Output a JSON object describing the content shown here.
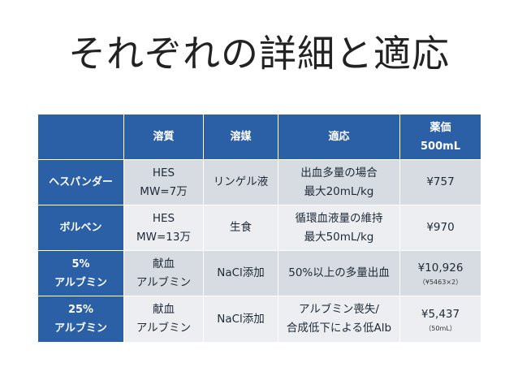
{
  "title": "それぞれの詳細と適応",
  "table": {
    "headers": [
      "",
      "溶質",
      "溶媒",
      "適応",
      [
        "薬価",
        "500mL"
      ]
    ],
    "rows": [
      {
        "name": [
          "ヘスパンダー"
        ],
        "solute": [
          "HES",
          "MW=7万"
        ],
        "solvent": [
          "リンゲル液"
        ],
        "indication": [
          "出血多量の場合",
          "最大20mL/kg"
        ],
        "price": "¥757",
        "price_note": ""
      },
      {
        "name": [
          "ボルベン"
        ],
        "solute": [
          "HES",
          "MW=13万"
        ],
        "solvent": [
          "生食"
        ],
        "indication": [
          "循環血液量の維持",
          "最大50mL/kg"
        ],
        "price": "¥970",
        "price_note": ""
      },
      {
        "name": [
          "5%",
          "アルブミン"
        ],
        "solute": [
          "献血",
          "アルブミン"
        ],
        "solvent": [
          "NaCl添加"
        ],
        "indication": [
          "50%以上の多量出血"
        ],
        "price": "¥10,926",
        "price_note": "（¥5463×2）"
      },
      {
        "name": [
          "25%",
          "アルブミン"
        ],
        "solute": [
          "献血",
          "アルブミン"
        ],
        "solvent": [
          "NaCl添加"
        ],
        "indication": [
          "アルブミン喪失/",
          "合成低下による低Alb"
        ],
        "price": "¥5,437",
        "price_note": "（50mL）"
      }
    ]
  }
}
